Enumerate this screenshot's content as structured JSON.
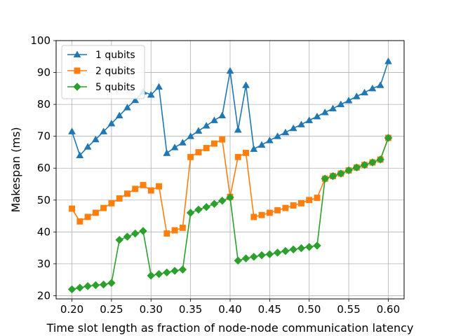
{
  "chart_data": {
    "type": "line",
    "xlabel": "Time slot length as fraction of node-node communication latency",
    "ylabel": "Makespan (ms)",
    "xlim": [
      0.18,
      0.62
    ],
    "ylim": [
      19,
      100
    ],
    "xticks": [
      0.2,
      0.25,
      0.3,
      0.35,
      0.4,
      0.45,
      0.5,
      0.55,
      0.6
    ],
    "xtick_labels": [
      "0.20",
      "0.25",
      "0.30",
      "0.35",
      "0.40",
      "0.45",
      "0.50",
      "0.55",
      "0.60"
    ],
    "yticks": [
      20,
      30,
      40,
      50,
      60,
      70,
      80,
      90,
      100
    ],
    "ytick_labels": [
      "20",
      "30",
      "40",
      "50",
      "60",
      "70",
      "80",
      "90",
      "100"
    ],
    "grid": true,
    "legend_position": "top-left",
    "x": [
      0.2,
      0.21,
      0.22,
      0.23,
      0.24,
      0.25,
      0.26,
      0.27,
      0.28,
      0.29,
      0.3,
      0.31,
      0.32,
      0.33,
      0.34,
      0.35,
      0.36,
      0.37,
      0.38,
      0.39,
      0.4,
      0.41,
      0.42,
      0.43,
      0.44,
      0.45,
      0.46,
      0.47,
      0.48,
      0.49,
      0.5,
      0.51,
      0.52,
      0.53,
      0.54,
      0.55,
      0.56,
      0.57,
      0.58,
      0.59,
      0.6
    ],
    "series": [
      {
        "name": "1 qubits",
        "color": "#1f77b4",
        "marker": "triangle",
        "values": [
          71.5,
          64.0,
          66.7,
          69.0,
          71.5,
          74.0,
          76.5,
          79.0,
          81.3,
          84.0,
          83.0,
          85.5,
          64.7,
          66.5,
          68.0,
          70.0,
          71.7,
          73.3,
          75.0,
          76.5,
          90.5,
          72.0,
          86.0,
          66.0,
          67.3,
          68.7,
          70.0,
          71.2,
          72.5,
          73.7,
          75.0,
          76.2,
          77.5,
          78.7,
          80.0,
          81.2,
          82.5,
          83.7,
          85.0,
          86.0,
          93.5
        ]
      },
      {
        "name": "2 qubits",
        "color": "#ff7f0e",
        "marker": "square",
        "values": [
          47.3,
          43.3,
          44.7,
          46.0,
          47.5,
          49.0,
          50.5,
          52.0,
          53.5,
          54.7,
          53.0,
          54.3,
          39.5,
          40.5,
          41.3,
          63.5,
          65.0,
          66.3,
          67.7,
          69.0,
          51.0,
          63.5,
          64.8,
          44.7,
          45.3,
          46.0,
          46.8,
          47.5,
          48.3,
          49.0,
          50.0,
          50.7,
          56.7,
          57.5,
          58.3,
          59.3,
          60.2,
          61.0,
          61.8,
          62.7,
          69.5
        ]
      },
      {
        "name": "5 qubits",
        "color": "#2ca02c",
        "marker": "diamond",
        "values": [
          22.0,
          22.5,
          23.0,
          23.3,
          23.5,
          24.0,
          37.5,
          38.5,
          39.5,
          40.3,
          26.3,
          26.8,
          27.3,
          27.8,
          28.2,
          46.0,
          47.0,
          47.8,
          48.8,
          49.8,
          50.8,
          31.0,
          31.7,
          32.2,
          32.7,
          33.0,
          33.5,
          34.0,
          34.5,
          34.9,
          35.3,
          35.7,
          56.7,
          57.5,
          58.3,
          59.3,
          60.2,
          61.0,
          61.8,
          62.7,
          69.5
        ]
      }
    ]
  }
}
